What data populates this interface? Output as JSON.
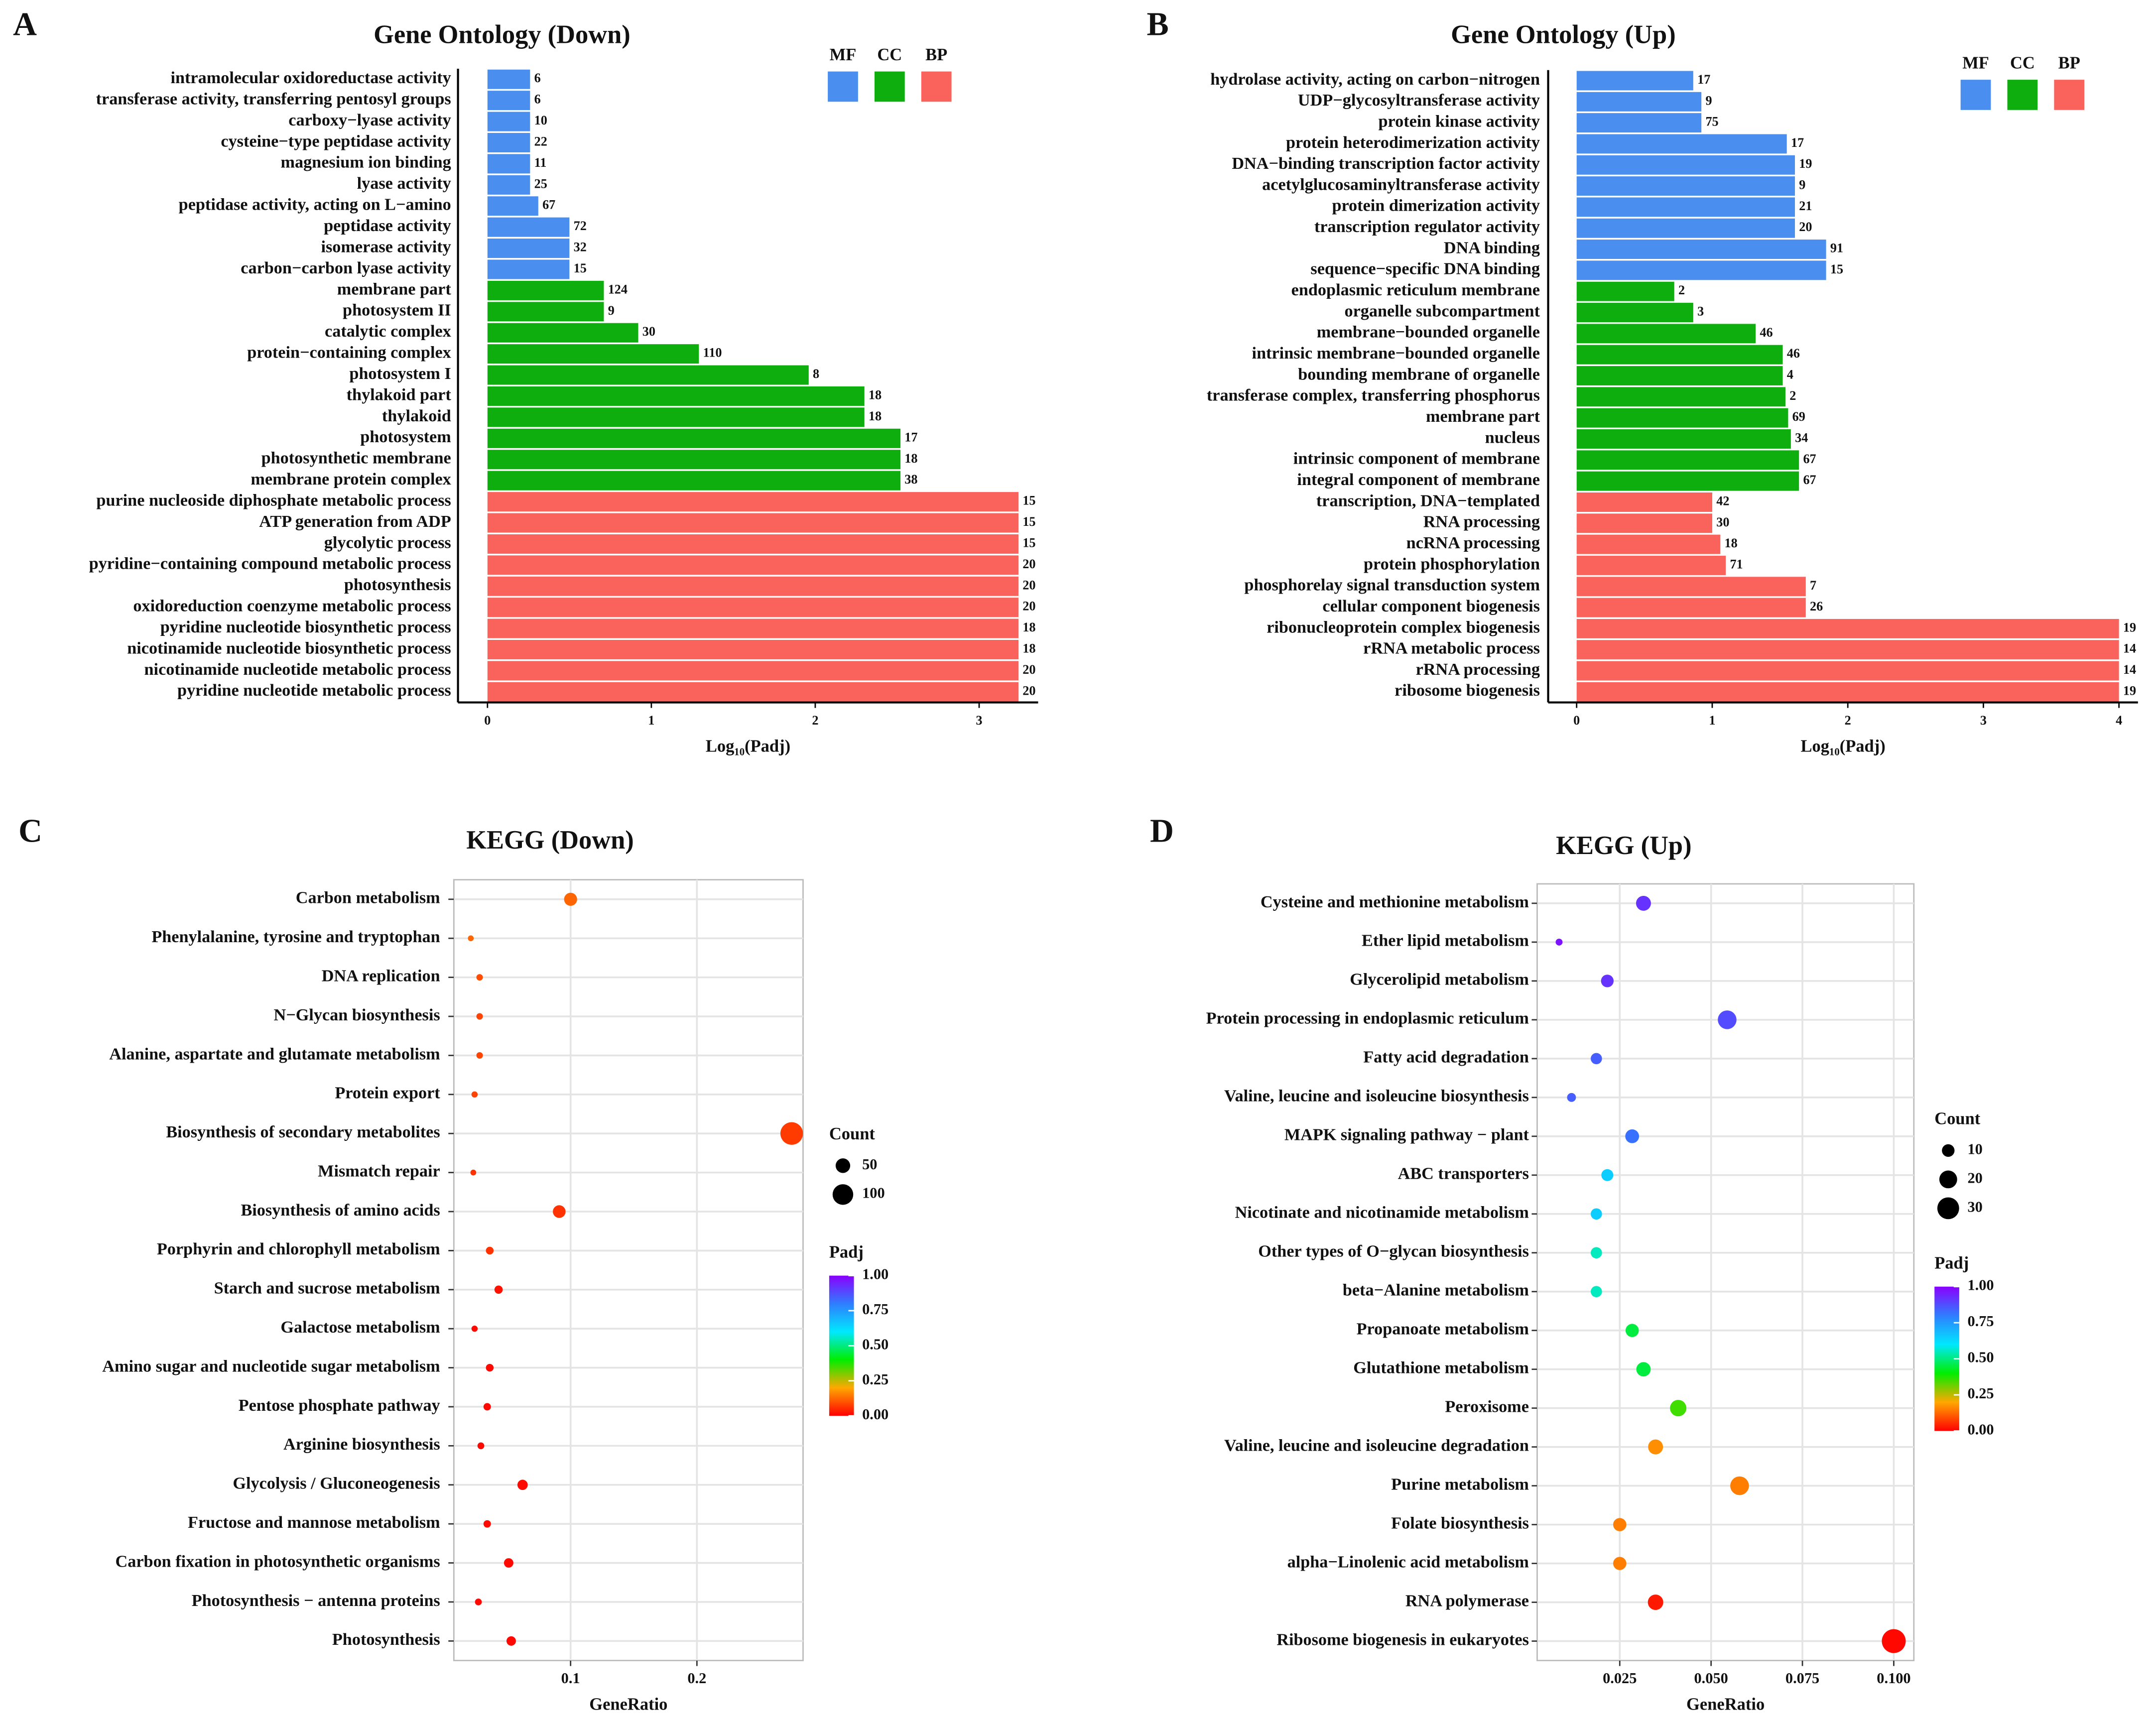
{
  "chart_data": [
    {
      "type": "bar",
      "panel": "A",
      "title": "Gene Ontology (Down)",
      "xlabel": "Log₁₀(Padj)",
      "xlim": [
        -0.18,
        3.36
      ],
      "xticks": [
        0,
        1,
        2,
        3
      ],
      "series": [
        {
          "name": "MF",
          "color": "#4a8ff0",
          "categories": [
            "intramolecular oxidoreductase activity",
            "transferase activity, transferring pentosyl groups",
            "carboxy−lyase activity",
            "cysteine−type peptidase activity",
            "magnesium ion binding",
            "lyase activity",
            "peptidase activity, acting on L−amino",
            "peptidase activity",
            "isomerase activity",
            "carbon−carbon lyase activity"
          ],
          "values": [
            0.26,
            0.26,
            0.26,
            0.26,
            0.26,
            0.26,
            0.31,
            0.5,
            0.5,
            0.5
          ],
          "counts": [
            6,
            6,
            10,
            22,
            11,
            25,
            67,
            72,
            32,
            15
          ]
        },
        {
          "name": "CC",
          "color": "#0fae0f",
          "categories": [
            "membrane part",
            "photosystem II",
            "catalytic complex",
            "protein−containing complex",
            "photosystem I",
            "thylakoid part",
            "thylakoid",
            "photosystem",
            "photosynthetic membrane",
            "membrane protein complex"
          ],
          "values": [
            0.71,
            0.71,
            0.92,
            1.29,
            1.96,
            2.3,
            2.3,
            2.52,
            2.52,
            2.52
          ],
          "counts": [
            124,
            9,
            30,
            110,
            8,
            18,
            18,
            17,
            18,
            38
          ]
        },
        {
          "name": "BP",
          "color": "#fa625c",
          "categories": [
            "purine nucleoside diphosphate metabolic process",
            "ATP generation from ADP",
            "glycolytic process",
            "pyridine−containing compound metabolic process",
            "photosynthesis",
            "oxidoreduction coenzyme metabolic process",
            "pyridine nucleotide biosynthetic process",
            "nicotinamide nucleotide biosynthetic process",
            "nicotinamide nucleotide metabolic process",
            "pyridine nucleotide metabolic process"
          ],
          "values": [
            3.24,
            3.24,
            3.24,
            3.24,
            3.24,
            3.24,
            3.24,
            3.24,
            3.24,
            3.24
          ],
          "counts": [
            15,
            15,
            15,
            20,
            20,
            20,
            18,
            18,
            20,
            20
          ]
        }
      ]
    },
    {
      "type": "bar",
      "panel": "B",
      "title": "Gene Ontology (Up)",
      "xlabel": "Log₁₀(Padj)",
      "xlim": [
        -0.21,
        4.14
      ],
      "xticks": [
        0,
        1,
        2,
        3,
        4
      ],
      "series": [
        {
          "name": "MF",
          "color": "#4a8ff0",
          "categories": [
            "hydrolase activity, acting on carbon−nitrogen",
            "UDP−glycosyltransferase activity",
            "protein kinase activity",
            "protein heterodimerization activity",
            "DNA−binding transcription factor activity",
            "acetylglucosaminyltransferase activity",
            "protein dimerization activity",
            "transcription regulator activity",
            "DNA binding",
            "sequence−specific DNA binding"
          ],
          "values": [
            0.86,
            0.92,
            0.92,
            1.55,
            1.61,
            1.61,
            1.61,
            1.61,
            1.84,
            1.84
          ],
          "counts": [
            17,
            9,
            75,
            17,
            19,
            9,
            21,
            20,
            91,
            15
          ]
        },
        {
          "name": "CC",
          "color": "#0fae0f",
          "categories": [
            "endoplasmic reticulum membrane",
            "organelle subcompartment",
            "membrane−bounded organelle",
            "intrinsic membrane−bounded organelle",
            "bounding membrane of organelle",
            "transferase complex, transferring phosphorus",
            "membrane part",
            "nucleus",
            "intrinsic component of membrane",
            "integral component of membrane"
          ],
          "values": [
            0.72,
            0.86,
            1.32,
            1.52,
            1.52,
            1.54,
            1.56,
            1.58,
            1.64,
            1.64
          ],
          "counts": [
            2,
            3,
            46,
            46,
            4,
            2,
            69,
            34,
            67,
            67
          ]
        },
        {
          "name": "BP",
          "color": "#fa625c",
          "categories": [
            "transcription, DNA−templated",
            "RNA processing",
            "ncRNA processing",
            "protein phosphorylation",
            "phosphorelay signal transduction system",
            "cellular component biogenesis",
            "ribonucleoprotein complex biogenesis",
            "rRNA metabolic process",
            "rRNA processing",
            "ribosome biogenesis"
          ],
          "values": [
            1.0,
            1.0,
            1.06,
            1.1,
            1.69,
            1.69,
            4.0,
            4.0,
            4.0,
            4.0
          ],
          "counts": [
            42,
            30,
            18,
            71,
            7,
            26,
            19,
            14,
            14,
            19
          ]
        }
      ]
    },
    {
      "type": "bubble",
      "panel": "C",
      "title": "KEGG (Down)",
      "xlabel": "GeneRatio",
      "xlim": [
        0.0076,
        0.284
      ],
      "xticks": [
        0.1,
        0.2
      ],
      "grid": true,
      "categories": [
        "Carbon metabolism",
        "Phenylalanine, tyrosine and tryptophan",
        "DNA replication",
        "N−Glycan biosynthesis",
        "Alanine, aspartate and glutamate metabolism",
        "Protein export",
        "Biosynthesis of secondary metabolites",
        "Mismatch repair",
        "Biosynthesis of amino acids",
        "Porphyrin and chlorophyll metabolism",
        "Starch and sucrose metabolism",
        "Galactose metabolism",
        "Amino sugar and nucleotide sugar metabolism",
        "Pentose phosphate pathway",
        "Arginine biosynthesis",
        "Glycolysis / Gluconeogenesis",
        "Fructose and mannose metabolism",
        "Carbon fixation in photosynthetic organisms",
        "Photosynthesis − antenna proteins",
        "Photosynthesis"
      ],
      "x": [
        0.1,
        0.021,
        0.028,
        0.028,
        0.028,
        0.024,
        0.275,
        0.023,
        0.091,
        0.036,
        0.043,
        0.024,
        0.036,
        0.034,
        0.029,
        0.062,
        0.034,
        0.051,
        0.027,
        0.053
      ],
      "count": [
        40,
        8,
        10,
        10,
        10,
        9,
        120,
        8,
        38,
        14,
        16,
        9,
        14,
        13,
        11,
        25,
        13,
        21,
        11,
        21
      ],
      "padj": [
        0.12,
        0.12,
        0.09,
        0.08,
        0.08,
        0.08,
        0.07,
        0.06,
        0.06,
        0.06,
        0.02,
        0.01,
        0.01,
        0.01,
        0.01,
        0.01,
        0.01,
        0.01,
        0.01,
        0.01
      ],
      "size_title": "Count",
      "size_legend": [
        50,
        100
      ],
      "color_title": "Padj",
      "clim": [
        0,
        1
      ],
      "colorscale": [
        "#ff0000",
        "#ffa800",
        "#00ee00",
        "#00e8ff",
        "#2f7dff",
        "#8a00ff"
      ],
      "colorticks": [
        {
          "value": 0,
          "label": "0.00"
        },
        {
          "value": 0.25,
          "label": "0.25"
        },
        {
          "value": 0.5,
          "label": "0.50"
        },
        {
          "value": 0.75,
          "label": "0.75"
        },
        {
          "value": 1,
          "label": "1.00"
        }
      ]
    },
    {
      "type": "bubble",
      "panel": "D",
      "title": "KEGG (Up)",
      "xlabel": "GeneRatio",
      "xlim": [
        0.0024,
        0.1055
      ],
      "xticks": [
        {
          "value": 0.025,
          "label": "0.025"
        },
        {
          "value": 0.05,
          "label": "0.050"
        },
        {
          "value": 0.075,
          "label": "0.075"
        },
        {
          "value": 0.1,
          "label": "0.100"
        }
      ],
      "grid": true,
      "categories": [
        "Cysteine and methionine metabolism",
        "Ether lipid metabolism",
        "Glycerolipid metabolism",
        "Protein processing in endoplasmic reticulum",
        "Fatty acid degradation",
        "Valine, leucine and isoleucine biosynthesis",
        "MAPK signaling pathway − plant",
        "ABC transporters",
        "Nicotinate and nicotinamide metabolism",
        "Other types of O−glycan biosynthesis",
        "beta−Alanine metabolism",
        "Propanoate metabolism",
        "Glutathione metabolism",
        "Peroxisome",
        "Valine, leucine and isoleucine degradation",
        "Purine metabolism",
        "Folate biosynthesis",
        "alpha−Linolenic acid metabolism",
        "RNA polymerase",
        "Ribosome biogenesis in eukaryotes"
      ],
      "x": [
        0.0315,
        0.0084,
        0.0216,
        0.0544,
        0.0186,
        0.0118,
        0.0284,
        0.0216,
        0.0186,
        0.0186,
        0.0186,
        0.0284,
        0.0315,
        0.041,
        0.0348,
        0.0578,
        0.025,
        0.025,
        0.0348,
        0.1
      ],
      "count": [
        14,
        3,
        10,
        22,
        8,
        5,
        12,
        9,
        8,
        8,
        8,
        11,
        13,
        17,
        14,
        22,
        11,
        11,
        15,
        36
      ],
      "padj": [
        0.92,
        0.97,
        0.92,
        0.88,
        0.85,
        0.85,
        0.82,
        0.65,
        0.65,
        0.55,
        0.55,
        0.45,
        0.45,
        0.35,
        0.17,
        0.15,
        0.15,
        0.15,
        0.03,
        0.01
      ],
      "size_title": "Count",
      "size_legend": [
        10,
        20,
        30
      ],
      "color_title": "Padj",
      "clim": [
        0,
        1
      ],
      "colorscale": [
        "#ff0000",
        "#ffa800",
        "#00ee00",
        "#00e8ff",
        "#2f7dff",
        "#8a00ff"
      ],
      "colorticks": [
        {
          "value": 0,
          "label": "0.00"
        },
        {
          "value": 0.25,
          "label": "0.25"
        },
        {
          "value": 0.5,
          "label": "0.50"
        },
        {
          "value": 0.75,
          "label": "0.75"
        },
        {
          "value": 1,
          "label": "1.00"
        }
      ]
    }
  ]
}
